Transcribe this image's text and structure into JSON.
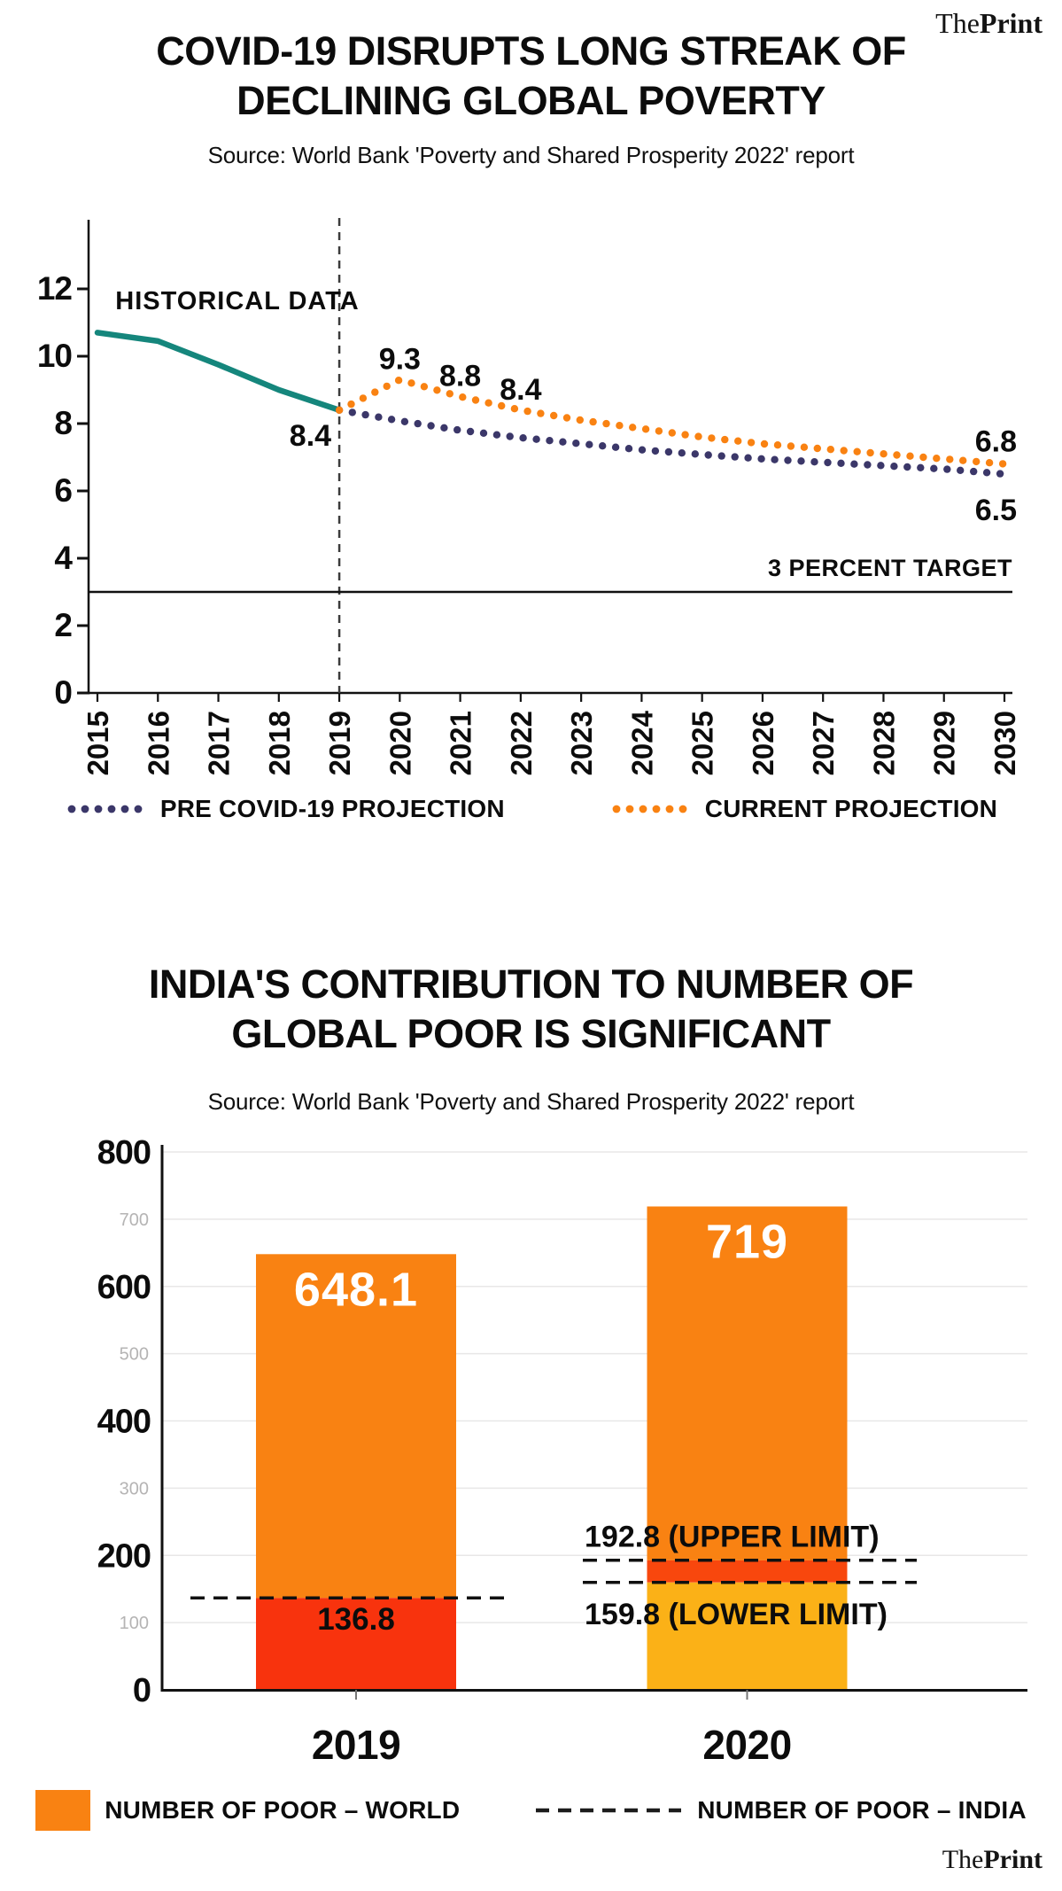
{
  "brand": {
    "the": "The",
    "print": "Print"
  },
  "chart_data": [
    {
      "type": "line",
      "title_lines": [
        "COVID-19 DISRUPTS LONG STREAK OF",
        "DECLINING GLOBAL POVERTY"
      ],
      "source": "Source: World Bank 'Poverty and Shared Prosperity 2022' report",
      "x": [
        2015,
        2016,
        2017,
        2018,
        2019,
        2020,
        2021,
        2022,
        2023,
        2024,
        2025,
        2026,
        2027,
        2028,
        2029,
        2030
      ],
      "ylim": [
        0,
        13.5
      ],
      "yticks": [
        0,
        2,
        4,
        6,
        8,
        10,
        12
      ],
      "grid": false,
      "legend_position": "bottom",
      "area_label": "HISTORICAL DATA",
      "divider_year": 2019,
      "target_line": {
        "value": 3,
        "label": "3 PERCENT TARGET"
      },
      "series": [
        {
          "name": "HISTORICAL DATA",
          "style": "solid",
          "color": "#15867C",
          "start_year": 2015,
          "values": [
            10.7,
            10.45,
            9.75,
            9.0,
            8.4
          ]
        },
        {
          "name": "PRE COVID-19 PROJECTION",
          "style": "dotted",
          "color": "#3B3769",
          "start_year": 2019,
          "values": [
            8.4,
            8.08,
            7.8,
            7.58,
            7.4,
            7.22,
            7.08,
            6.95,
            6.85,
            6.75,
            6.65,
            6.5
          ]
        },
        {
          "name": "CURRENT PROJECTION",
          "style": "dotted",
          "color": "#F98212",
          "start_year": 2019,
          "values": [
            8.4,
            9.3,
            8.8,
            8.4,
            8.1,
            7.85,
            7.6,
            7.4,
            7.25,
            7.1,
            6.95,
            6.8
          ]
        }
      ],
      "point_labels": [
        {
          "text": "8.4",
          "year": 2019,
          "value": 8.4,
          "placement": "below-left"
        },
        {
          "text": "9.3",
          "year": 2020,
          "value": 9.3,
          "placement": "above"
        },
        {
          "text": "8.8",
          "year": 2021,
          "value": 8.8,
          "placement": "above"
        },
        {
          "text": "8.4",
          "year": 2022,
          "value": 8.4,
          "placement": "above"
        },
        {
          "text": "6.8",
          "year": 2030,
          "value": 6.8,
          "placement": "end-above"
        },
        {
          "text": "6.5",
          "year": 2030,
          "value": 6.5,
          "placement": "end-below"
        }
      ],
      "legend": [
        {
          "label": "PRE COVID-19 PROJECTION",
          "color": "#3B3769"
        },
        {
          "label": "CURRENT PROJECTION",
          "color": "#F98212"
        }
      ]
    },
    {
      "type": "bar",
      "title_lines": [
        "INDIA'S CONTRIBUTION TO NUMBER OF",
        "GLOBAL POOR IS SIGNIFICANT"
      ],
      "source": "Source: World Bank 'Poverty and Shared Prosperity 2022' report",
      "categories": [
        "2019",
        "2020"
      ],
      "ylim": [
        0,
        800
      ],
      "yticks_major": [
        0,
        200,
        400,
        600,
        800
      ],
      "yticks_minor": [
        100,
        300,
        500,
        700
      ],
      "grid": true,
      "bars": [
        {
          "category": "2019",
          "world_total": 648.1,
          "label": "648.1",
          "india_line": {
            "value": 136.8,
            "label": "136.8"
          },
          "segments": [
            {
              "from": 0,
              "to": 136.8,
              "color": "#F8330D"
            },
            {
              "from": 136.8,
              "to": 648.1,
              "color": "#F98212"
            }
          ]
        },
        {
          "category": "2020",
          "world_total": 719,
          "label": "719",
          "india_upper": {
            "value": 192.8,
            "label": "192.8 (UPPER LIMIT)"
          },
          "india_lower": {
            "value": 159.8,
            "label": "159.8 (LOWER LIMIT)"
          },
          "segments": [
            {
              "from": 0,
              "to": 159.8,
              "color": "#FBB117"
            },
            {
              "from": 159.8,
              "to": 192.8,
              "color": "#F8470D"
            },
            {
              "from": 192.8,
              "to": 719,
              "color": "#F98212"
            }
          ]
        }
      ],
      "legend": [
        {
          "label": "NUMBER OF POOR – WORLD",
          "swatch": "solid",
          "color": "#F98212"
        },
        {
          "label": "NUMBER OF POOR – INDIA",
          "swatch": "dashed",
          "color": "#1c1c1c"
        }
      ]
    }
  ]
}
